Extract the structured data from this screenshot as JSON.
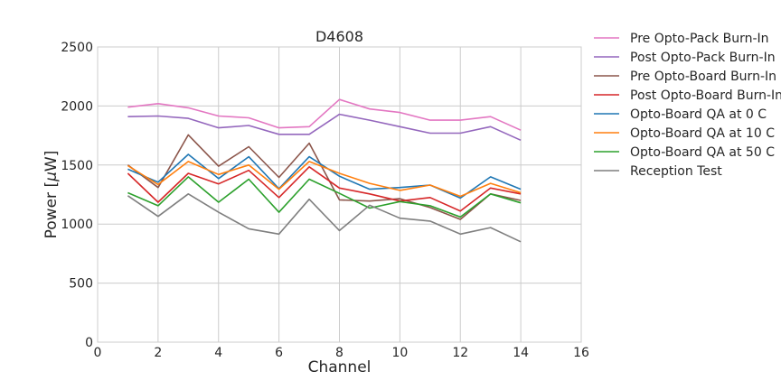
{
  "chart_data": {
    "type": "line",
    "title": "D4608",
    "xlabel": "Channel",
    "ylabel": "Power [",
    "ylabel_mu": "μ",
    "ylabel_unit": "W]",
    "xlim": [
      0,
      16
    ],
    "ylim": [
      0,
      2500
    ],
    "xticks": [
      0,
      2,
      4,
      6,
      8,
      10,
      12,
      14,
      16
    ],
    "yticks": [
      0,
      500,
      1000,
      1500,
      2000,
      2500
    ],
    "grid": true,
    "legend_position": "outside-right",
    "x": [
      1,
      2,
      3,
      4,
      5,
      6,
      7,
      8,
      9,
      10,
      11,
      12,
      13,
      14
    ],
    "series": [
      {
        "name": "Pre Opto-Pack Burn-In",
        "color": "#e377c2",
        "values": [
          1990,
          2020,
          1985,
          1915,
          1900,
          1815,
          1825,
          2055,
          1975,
          1945,
          1880,
          1880,
          1910,
          1795
        ]
      },
      {
        "name": "Post Opto-Pack Burn-In",
        "color": "#9467bd",
        "values": [
          1910,
          1915,
          1895,
          1815,
          1835,
          1760,
          1760,
          1930,
          1880,
          1825,
          1770,
          1770,
          1825,
          1710
        ]
      },
      {
        "name": "Pre Opto-Board Burn-In",
        "color": "#8c564b",
        "values": [
          1500,
          1310,
          1755,
          1490,
          1655,
          1395,
          1685,
          1205,
          1195,
          1215,
          1140,
          1040,
          1255,
          1200
        ]
      },
      {
        "name": "Post Opto-Board Burn-In",
        "color": "#d62728",
        "values": [
          1430,
          1185,
          1430,
          1340,
          1455,
          1225,
          1485,
          1305,
          1255,
          1195,
          1225,
          1110,
          1305,
          1255
        ]
      },
      {
        "name": "Opto-Board QA at 0 C",
        "color": "#1f77b4",
        "values": [
          1465,
          1355,
          1590,
          1385,
          1570,
          1300,
          1570,
          1405,
          1295,
          1310,
          1330,
          1220,
          1400,
          1295
        ]
      },
      {
        "name": "Opto-Board QA at 10 C",
        "color": "#ff7f0e",
        "values": [
          1495,
          1335,
          1530,
          1420,
          1500,
          1295,
          1530,
          1430,
          1345,
          1285,
          1330,
          1235,
          1345,
          1265
        ]
      },
      {
        "name": "Opto-Board QA at 50 C",
        "color": "#2ca02c",
        "values": [
          1265,
          1155,
          1400,
          1185,
          1380,
          1100,
          1380,
          1260,
          1135,
          1190,
          1155,
          1060,
          1255,
          1180
        ]
      },
      {
        "name": "Reception Test",
        "color": "#7f7f7f",
        "values": [
          1240,
          1065,
          1255,
          1100,
          960,
          915,
          1210,
          945,
          1160,
          1050,
          1025,
          915,
          970,
          850
        ]
      }
    ]
  }
}
